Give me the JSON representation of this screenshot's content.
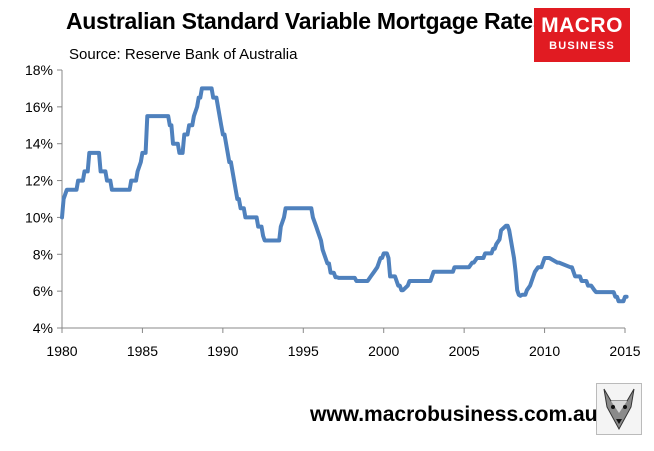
{
  "header": {
    "title": "Australian Standard Variable Mortgage Rates",
    "subtitle": "Source: Reserve Bank of Australia"
  },
  "logo": {
    "line1": "MACRO",
    "line2": "BUSINESS"
  },
  "footer": {
    "url": "www.macrobusiness.com.au"
  },
  "icons": {
    "mascot": "wolf-icon"
  },
  "chart_data": {
    "type": "line",
    "title": "Australian Standard Variable Mortgage Rates",
    "subtitle": "Source: Reserve Bank of Australia",
    "xlabel": "",
    "ylabel": "",
    "xlim": [
      1980,
      2015
    ],
    "ylim": [
      4,
      18
    ],
    "x_ticks": [
      1980,
      1985,
      1990,
      1995,
      2000,
      2005,
      2010,
      2015
    ],
    "y_ticks": [
      4,
      6,
      8,
      10,
      12,
      14,
      16,
      18
    ],
    "y_tick_labels": [
      "4%",
      "6%",
      "8%",
      "10%",
      "12%",
      "14%",
      "16%",
      "18%"
    ],
    "x_tick_labels": [
      "1980",
      "1985",
      "1990",
      "1995",
      "2000",
      "2005",
      "2010",
      "2015"
    ],
    "grid": false,
    "legend": "none",
    "series": [
      {
        "color": "#4f81bd",
        "x": [
          1980.0,
          1980.1,
          1980.3,
          1980.9,
          1981.0,
          1981.3,
          1981.4,
          1981.6,
          1981.7,
          1982.3,
          1982.4,
          1982.7,
          1982.8,
          1983.0,
          1983.1,
          1984.2,
          1984.3,
          1984.6,
          1984.7,
          1984.9,
          1985.0,
          1985.2,
          1985.3,
          1986.6,
          1986.7,
          1986.8,
          1986.9,
          1987.2,
          1987.3,
          1987.5,
          1987.6,
          1987.8,
          1987.9,
          1988.1,
          1988.2,
          1988.4,
          1988.5,
          1988.6,
          1988.7,
          1989.3,
          1989.4,
          1989.6,
          1989.7,
          1989.8,
          1989.9,
          1990.0,
          1990.1,
          1990.2,
          1990.3,
          1990.4,
          1990.5,
          1990.6,
          1990.7,
          1990.8,
          1990.9,
          1991.0,
          1991.1,
          1991.3,
          1991.4,
          1991.5,
          1991.6,
          1992.1,
          1992.2,
          1992.4,
          1992.5,
          1992.6,
          1992.7,
          1993.5,
          1993.6,
          1993.8,
          1993.9,
          1995.5,
          1995.6,
          1995.8,
          1995.9,
          1996.1,
          1996.2,
          1996.4,
          1996.5,
          1996.6,
          1996.7,
          1996.9,
          1997.0,
          1997.1,
          1997.2,
          1998.2,
          1998.3,
          1998.8,
          1998.9,
          1999.0,
          1999.2,
          1999.4,
          1999.6,
          1999.7,
          1999.8,
          1999.9,
          2000.0,
          2000.1,
          2000.2,
          2000.3,
          2000.4,
          2000.6,
          2000.7,
          2000.8,
          2000.9,
          2001.0,
          2001.1,
          2001.2,
          2001.5,
          2001.6,
          2001.7,
          2002.4,
          2002.5,
          2002.9,
          2003.0,
          2003.1,
          2003.2,
          2003.4,
          2004.0,
          2004.1,
          2004.3,
          2004.4,
          2004.6,
          2005.2,
          2005.3,
          2005.5,
          2005.6,
          2005.8,
          2006.2,
          2006.3,
          2006.5,
          2006.6,
          2006.7,
          2006.8,
          2006.9,
          2007.0,
          2007.2,
          2007.3,
          2007.6,
          2007.7,
          2007.8,
          2008.0,
          2008.1,
          2008.2,
          2008.3,
          2008.4,
          2008.5,
          2008.6,
          2008.8,
          2008.9,
          2009.1,
          2009.2,
          2009.3,
          2009.4,
          2009.6,
          2009.7,
          2009.8,
          2009.9,
          2010.0,
          2010.1,
          2010.2,
          2010.3,
          2010.8,
          2010.9,
          2011.6,
          2011.7,
          2011.8,
          2011.9,
          2012.2,
          2012.3,
          2012.6,
          2012.7,
          2012.8,
          2012.9,
          2013.1,
          2013.2,
          2013.3,
          2013.4,
          2013.5,
          2013.6,
          2013.7,
          2014.0,
          2014.3,
          2014.4,
          2014.5,
          2014.6,
          2014.7,
          2014.9,
          2015.0,
          2015.1
        ],
        "y": [
          10.0,
          11.0,
          11.5,
          11.5,
          12.0,
          12.0,
          12.5,
          12.5,
          13.5,
          13.5,
          12.5,
          12.5,
          12.0,
          12.0,
          11.5,
          11.5,
          12.0,
          12.0,
          12.5,
          13.0,
          13.5,
          13.5,
          15.5,
          15.5,
          15.0,
          15.0,
          14.0,
          14.0,
          13.5,
          13.5,
          14.5,
          14.5,
          15.0,
          15.0,
          15.5,
          16.0,
          16.5,
          16.5,
          17.0,
          17.0,
          16.5,
          16.5,
          16.0,
          15.5,
          15.0,
          14.5,
          14.5,
          14.0,
          13.5,
          13.0,
          13.0,
          12.5,
          12.0,
          11.5,
          11.0,
          11.0,
          10.5,
          10.5,
          10.0,
          10.0,
          10.0,
          10.0,
          9.5,
          9.5,
          9.0,
          8.75,
          8.75,
          8.75,
          9.5,
          10.0,
          10.5,
          10.5,
          10.0,
          9.5,
          9.25,
          8.75,
          8.25,
          7.75,
          7.5,
          7.5,
          7.0,
          7.0,
          6.75,
          6.75,
          6.72,
          6.72,
          6.55,
          6.55,
          6.55,
          6.55,
          6.8,
          7.05,
          7.3,
          7.55,
          7.8,
          7.8,
          8.05,
          8.05,
          8.05,
          7.8,
          6.8,
          6.8,
          6.8,
          6.55,
          6.3,
          6.3,
          6.05,
          6.05,
          6.3,
          6.55,
          6.55,
          6.55,
          6.55,
          6.55,
          6.8,
          7.05,
          7.05,
          7.05,
          7.05,
          7.05,
          7.05,
          7.3,
          7.3,
          7.3,
          7.3,
          7.55,
          7.55,
          7.8,
          7.8,
          8.05,
          8.05,
          8.05,
          8.05,
          8.3,
          8.3,
          8.55,
          8.8,
          9.3,
          9.55,
          9.55,
          9.3,
          8.3,
          7.8,
          7.05,
          6.05,
          5.8,
          5.75,
          5.8,
          5.8,
          6.05,
          6.3,
          6.55,
          6.8,
          7.05,
          7.3,
          7.3,
          7.3,
          7.55,
          7.8,
          7.8,
          7.8,
          7.8,
          7.55,
          7.55,
          7.3,
          7.3,
          7.05,
          6.8,
          6.8,
          6.55,
          6.55,
          6.3,
          6.3,
          6.3,
          6.05,
          5.95,
          5.95,
          5.95,
          5.95,
          5.95,
          5.95,
          5.95,
          5.95,
          5.7,
          5.7,
          5.45,
          5.45,
          5.45,
          5.7,
          5.7
        ]
      }
    ]
  }
}
